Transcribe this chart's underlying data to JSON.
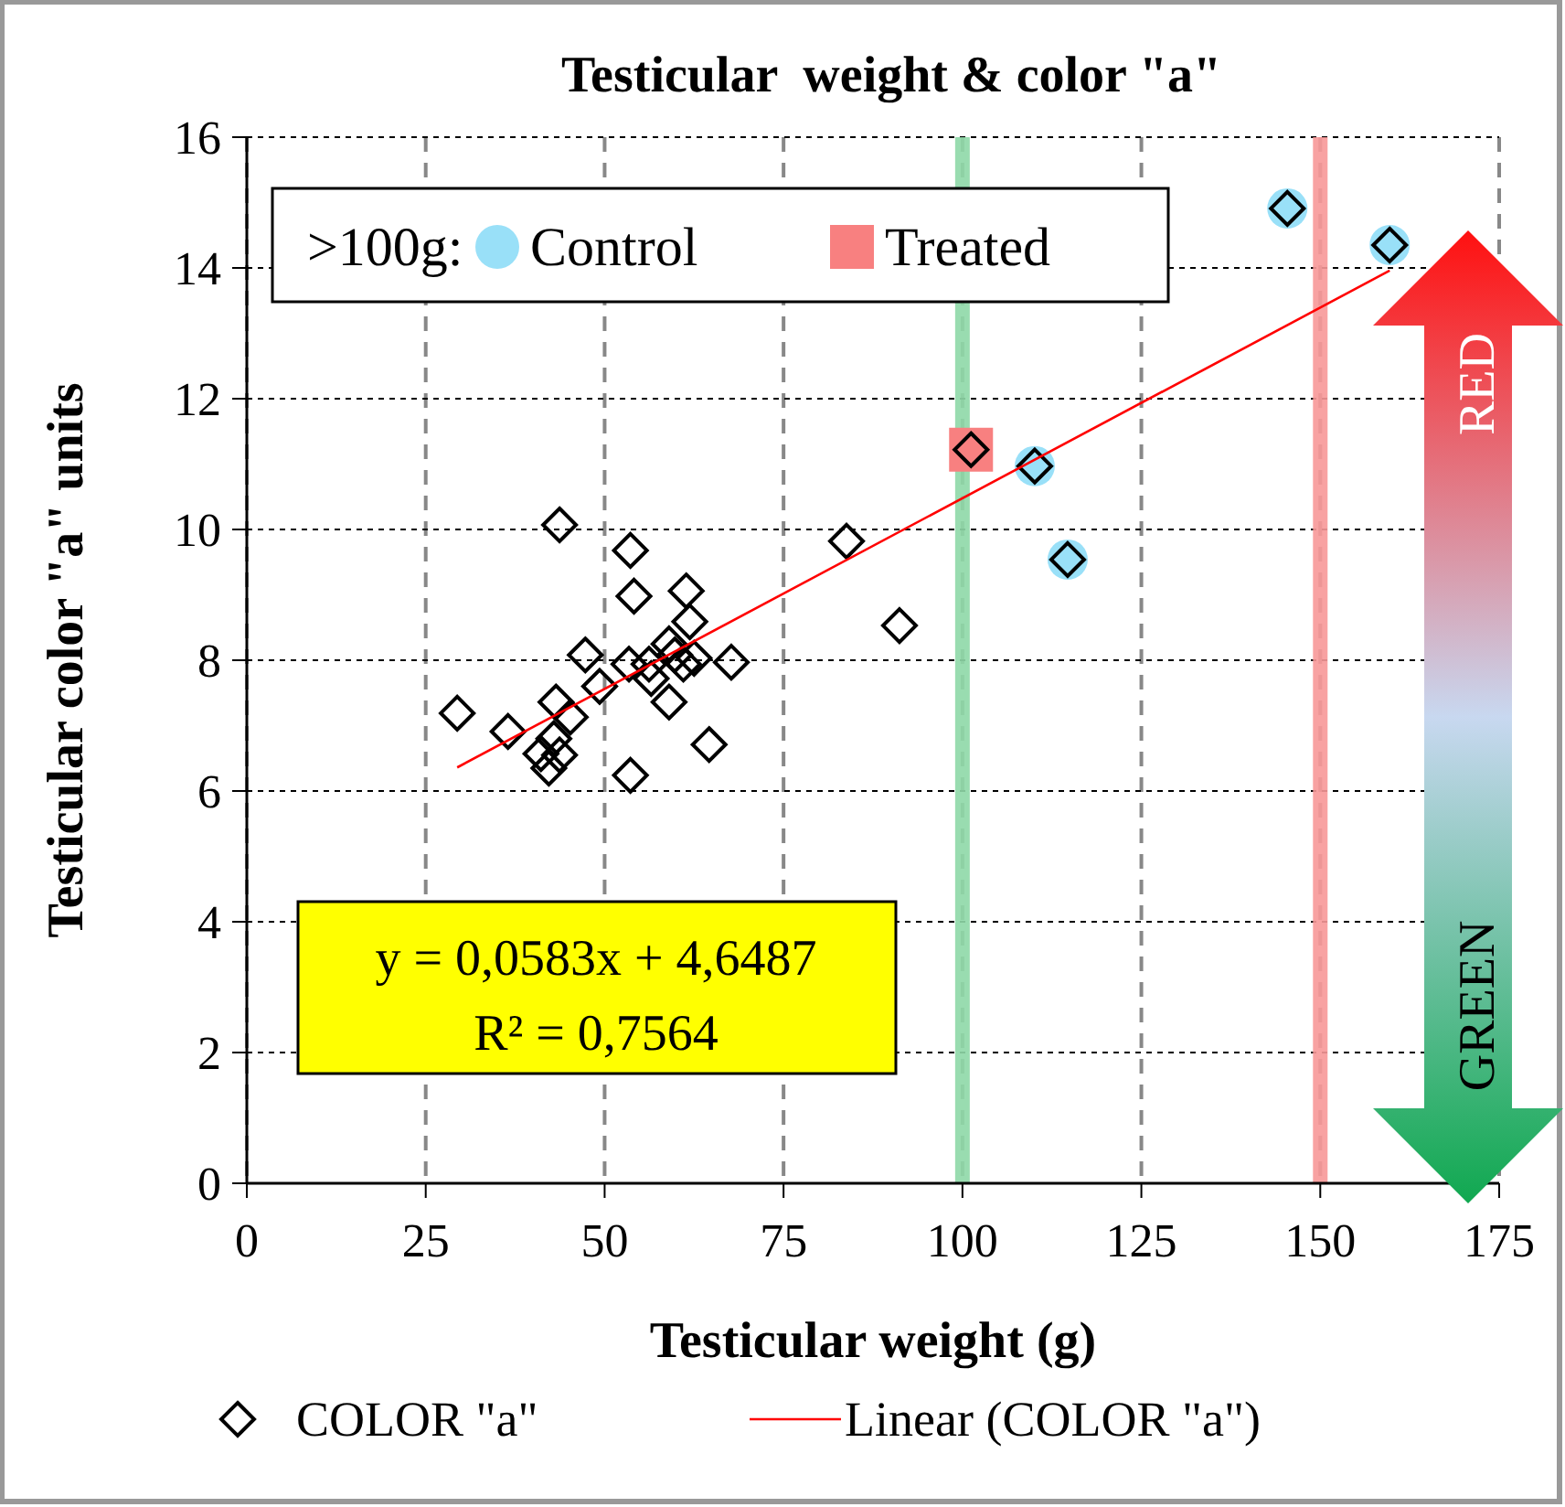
{
  "chart_data": {
    "type": "scatter",
    "title": "Testicular  weight & color \"a\"",
    "xlabel": "Testicular weight (g)",
    "ylabel": "Testicular color \"a\" units",
    "legend_title": ">100g:",
    "xlim": [
      0,
      175
    ],
    "xticks": [
      0,
      25,
      50,
      75,
      100,
      125,
      150,
      175
    ],
    "ylim": [
      0,
      16
    ],
    "yticks": [
      0,
      2,
      4,
      6,
      8,
      10,
      12,
      14,
      16
    ],
    "grid": true,
    "legend": "bottom",
    "series": [
      {
        "name": "Control",
        "marker": "circle",
        "color": "#99e0f8",
        "x": [
          110.1,
          114.7,
          145.4,
          159.7
        ],
        "values": [
          10.97,
          9.54,
          14.91,
          14.35
        ]
      },
      {
        "name": "Treated",
        "marker": "square",
        "color": "#f88080",
        "x": [
          101.2
        ],
        "values": [
          11.22
        ]
      },
      {
        "name": "COLOR \"a\"",
        "marker": "diamond",
        "color": "#000000",
        "x": [
          29.4,
          36.5,
          43.7,
          43.2,
          41.1,
          42.2,
          43.7,
          42.9,
          47.3,
          45.2,
          49.3,
          53.6,
          54.1,
          53.6,
          53.4,
          56.2,
          56.5,
          59.0,
          59.8,
          59.0,
          61.4,
          61.9,
          61.0,
          62.5,
          64.6,
          67.7,
          83.8,
          91.2,
          101.2,
          110.1,
          114.7,
          145.4,
          159.7
        ],
        "values": [
          7.19,
          6.91,
          10.07,
          7.36,
          6.57,
          6.35,
          6.55,
          6.8,
          8.08,
          7.13,
          7.6,
          9.68,
          8.98,
          6.24,
          7.94,
          7.94,
          7.72,
          8.25,
          8.08,
          7.36,
          9.06,
          8.59,
          7.94,
          8.03,
          6.71,
          7.97,
          9.82,
          8.53,
          11.22,
          10.97,
          9.54,
          14.91,
          14.35
        ]
      },
      {
        "name": "Linear (COLOR \"a\")",
        "type": "line",
        "marker": "none",
        "color": "#ff0000",
        "x": [
          29.4,
          159.7
        ],
        "values": [
          6.36,
          13.96
        ]
      }
    ],
    "ref_lines": [
      {
        "axis": "x",
        "value": 100,
        "color": "#8fd9a8"
      },
      {
        "axis": "x",
        "value": 150,
        "color": "#f89898"
      }
    ],
    "annotations": [
      "y = 0,0583x + 4,6487",
      "R² = 0,7564",
      "RED",
      "GREEN"
    ]
  }
}
